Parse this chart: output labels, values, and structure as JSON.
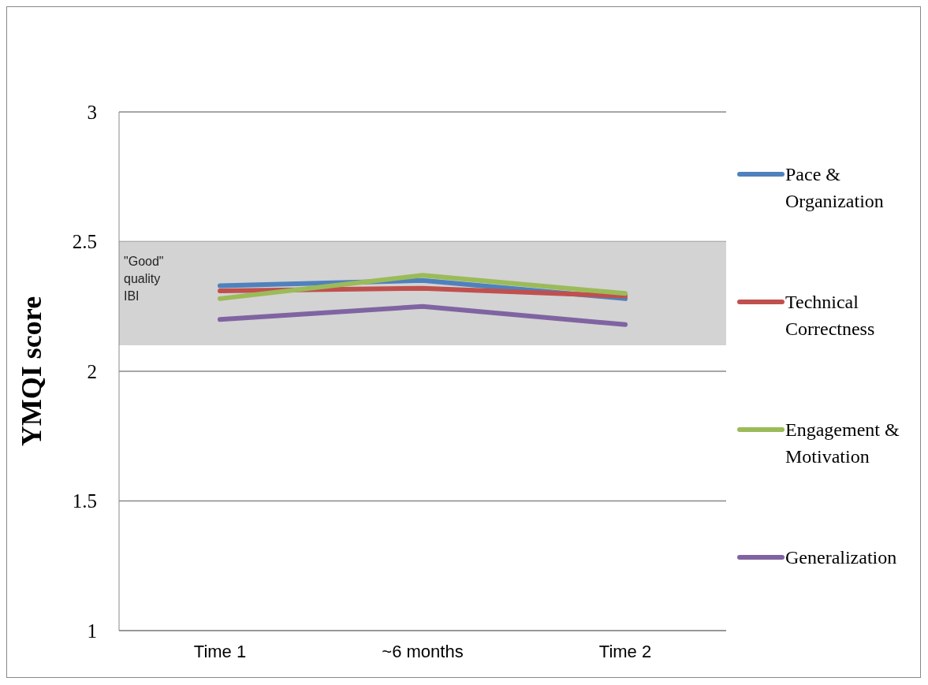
{
  "chart_data": {
    "type": "line",
    "ylabel": "YMQI score",
    "categories": [
      "Time 1",
      "~6 months",
      "Time 2"
    ],
    "series": [
      {
        "name": "Pace & Organization",
        "color": "#4f81bd",
        "values": [
          2.33,
          2.35,
          2.28
        ]
      },
      {
        "name": "Technical Correctness",
        "color": "#c0504d",
        "values": [
          2.31,
          2.32,
          2.29
        ]
      },
      {
        "name": "Engagement & Motivation",
        "color": "#9bbb59",
        "values": [
          2.28,
          2.37,
          2.3
        ]
      },
      {
        "name": "Generalization",
        "color": "#8064a2",
        "values": [
          2.2,
          2.25,
          2.18
        ]
      }
    ],
    "ylim": [
      1,
      3
    ],
    "yticks": [
      1,
      1.5,
      2,
      2.5,
      3
    ],
    "grid": "y",
    "legend": "right",
    "marker": "none",
    "line_style": "solid",
    "bands": [
      {
        "axis": "y",
        "from": 2.1,
        "to": 2.5,
        "label": "\"Good\" quality IBI",
        "color": "#d3d3d3"
      }
    ]
  }
}
